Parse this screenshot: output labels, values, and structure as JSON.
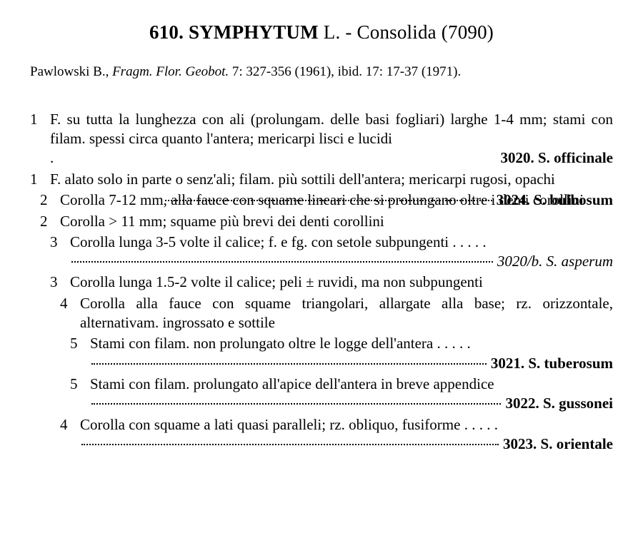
{
  "heading": {
    "number": "610.",
    "genus": "SYMPHYTUM",
    "author": "L.",
    "common": "Consolida",
    "code": "(7090)"
  },
  "citation": {
    "author": "Pawlowski B.,",
    "journal": "Fragm. Flor. Geobot.",
    "rest": "7: 327-356 (1961), ibid. 17: 17-37 (1971)."
  },
  "key": [
    {
      "num": "1",
      "level": 1,
      "text": "F. su tutta la lunghezza con ali (prolungam. delle basi fogliari) larghe 1-4 mm; stami con filam. spessi circa quanto l'antera; mericarpi lisci e lucidi",
      "species": "3020. S. officinale",
      "trailing_dots": false,
      "leading_dot": true
    },
    {
      "num": "1",
      "level": 1,
      "text": "F. alato solo in parte o senz'ali; filam. più sottili dell'antera; mericarpi rugosi, opachi",
      "species": null
    },
    {
      "num": "2",
      "level": 2,
      "text": "Corolla 7-12 mm, alla fauce con squame lineari che si prolungano oltre i denti corollini",
      "species": "3024. S. bulbosum",
      "trailing_dots": true
    },
    {
      "num": "2",
      "level": 2,
      "text": "Corolla > 11 mm; squame più brevi dei denti corollini",
      "species": null
    },
    {
      "num": "3",
      "level": 3,
      "text": "Corolla lunga 3-5 volte il calice; f. e fg. con setole subpungenti",
      "species": "3020/b. S. asperum",
      "species_italic": true,
      "trailing_dots": true,
      "two_line_dots": true
    },
    {
      "num": "3",
      "level": 3,
      "text": "Corolla lunga 1.5-2 volte il calice; peli ± ruvidi, ma non subpungenti",
      "species": null
    },
    {
      "num": "4",
      "level": 4,
      "text": "Corolla alla fauce con squame triangolari, allargate alla base; rz. orizzontale, alternativam. ingrossato e sottile",
      "species": null
    },
    {
      "num": "5",
      "level": 5,
      "text": "Stami con filam. non prolungato oltre le logge dell'antera",
      "species": "3021. S. tuberosum",
      "trailing_dots": true,
      "two_line_dots": true
    },
    {
      "num": "5",
      "level": 5,
      "text": "Stami con filam. prolungato all'apice dell'antera in breve appendice",
      "species": "3022. S. gussonei",
      "trailing_dots": true,
      "two_line_dots": true,
      "no_first_dots": true
    },
    {
      "num": "4",
      "level": 4,
      "text": "Corolla con squame a lati quasi paralleli; rz. obliquo, fusiforme",
      "species": "3023. S. orientale",
      "trailing_dots": true,
      "two_line_dots": true
    }
  ]
}
